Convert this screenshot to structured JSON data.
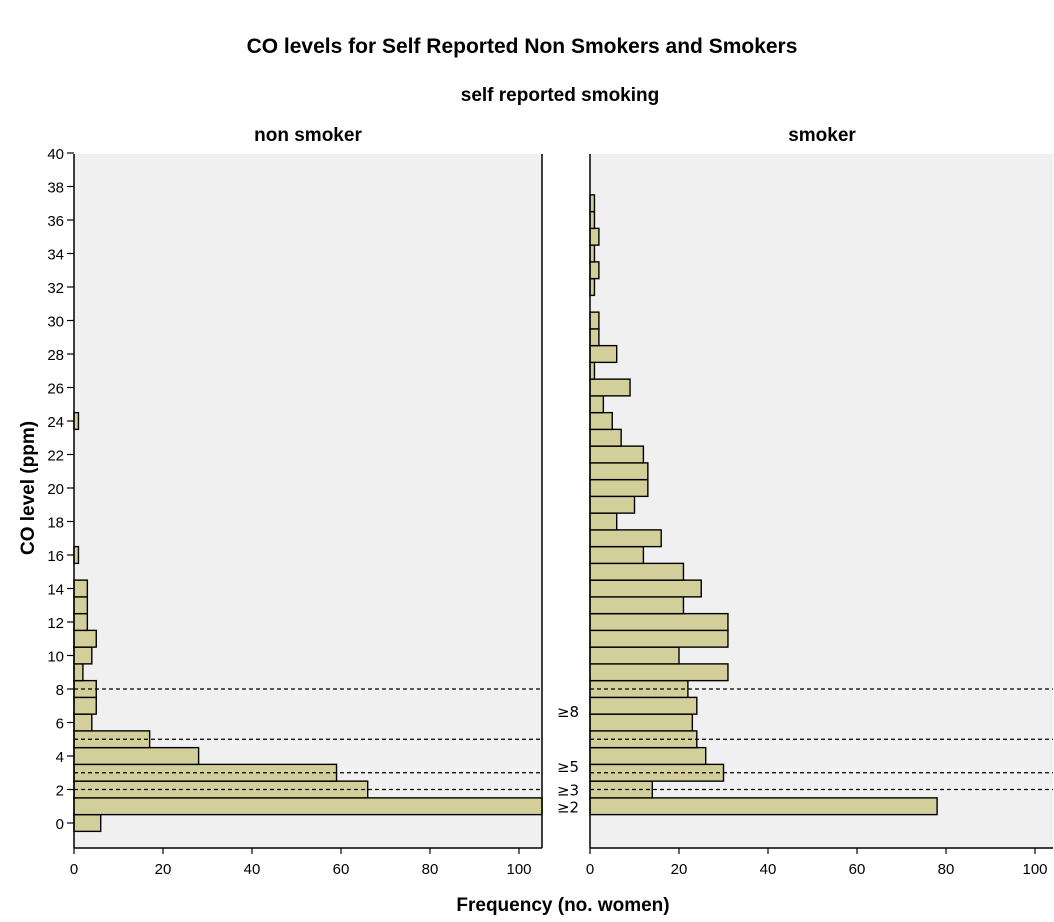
{
  "chart_data": {
    "type": "bar",
    "orientation": "horizontal",
    "title": "CO levels for Self Reported Non Smokers and Smokers",
    "panel_group_label": "self reported smoking",
    "xlabel": "Frequency (no. women)",
    "ylabel": "CO level (ppm)",
    "xlim": [
      0,
      105
    ],
    "ylim": [
      0,
      40
    ],
    "x_ticks": [
      0,
      20,
      40,
      60,
      80,
      100
    ],
    "y_ticks": [
      0,
      2,
      4,
      6,
      8,
      10,
      12,
      14,
      16,
      18,
      20,
      22,
      24,
      26,
      28,
      30,
      32,
      34,
      36,
      38,
      40
    ],
    "grid": false,
    "bar_color": "#d3cf9a",
    "panel_background": "#f0f0f0",
    "panels": [
      {
        "name": "non smoker",
        "values": [
          {
            "co": 0,
            "freq": 6
          },
          {
            "co": 1,
            "freq": 107
          },
          {
            "co": 2,
            "freq": 66
          },
          {
            "co": 3,
            "freq": 59
          },
          {
            "co": 4,
            "freq": 28
          },
          {
            "co": 5,
            "freq": 17
          },
          {
            "co": 6,
            "freq": 4
          },
          {
            "co": 7,
            "freq": 5
          },
          {
            "co": 8,
            "freq": 5
          },
          {
            "co": 9,
            "freq": 2
          },
          {
            "co": 10,
            "freq": 4
          },
          {
            "co": 11,
            "freq": 5
          },
          {
            "co": 12,
            "freq": 3
          },
          {
            "co": 13,
            "freq": 3
          },
          {
            "co": 14,
            "freq": 3
          },
          {
            "co": 16,
            "freq": 1
          },
          {
            "co": 24,
            "freq": 1
          }
        ]
      },
      {
        "name": "smoker",
        "values": [
          {
            "co": 1,
            "freq": 78
          },
          {
            "co": 2,
            "freq": 14
          },
          {
            "co": 3,
            "freq": 30
          },
          {
            "co": 4,
            "freq": 26
          },
          {
            "co": 5,
            "freq": 24
          },
          {
            "co": 6,
            "freq": 23
          },
          {
            "co": 7,
            "freq": 24
          },
          {
            "co": 8,
            "freq": 22
          },
          {
            "co": 9,
            "freq": 31
          },
          {
            "co": 10,
            "freq": 20
          },
          {
            "co": 11,
            "freq": 31
          },
          {
            "co": 12,
            "freq": 31
          },
          {
            "co": 13,
            "freq": 21
          },
          {
            "co": 14,
            "freq": 25
          },
          {
            "co": 15,
            "freq": 21
          },
          {
            "co": 16,
            "freq": 12
          },
          {
            "co": 17,
            "freq": 16
          },
          {
            "co": 18,
            "freq": 6
          },
          {
            "co": 19,
            "freq": 10
          },
          {
            "co": 20,
            "freq": 13
          },
          {
            "co": 21,
            "freq": 13
          },
          {
            "co": 22,
            "freq": 12
          },
          {
            "co": 23,
            "freq": 7
          },
          {
            "co": 24,
            "freq": 5
          },
          {
            "co": 25,
            "freq": 3
          },
          {
            "co": 26,
            "freq": 9
          },
          {
            "co": 27,
            "freq": 1
          },
          {
            "co": 28,
            "freq": 6
          },
          {
            "co": 29,
            "freq": 2
          },
          {
            "co": 30,
            "freq": 2
          },
          {
            "co": 32,
            "freq": 1
          },
          {
            "co": 33,
            "freq": 2
          },
          {
            "co": 34,
            "freq": 1
          },
          {
            "co": 35,
            "freq": 2
          },
          {
            "co": 36,
            "freq": 1
          },
          {
            "co": 37,
            "freq": 1
          }
        ]
      }
    ],
    "thresholds": [
      {
        "label": "≥2",
        "co": 1.5
      },
      {
        "label": "≥3",
        "co": 2.5
      },
      {
        "label": "≥5",
        "co": 4.5
      },
      {
        "label": "≥8",
        "co": 7.5
      }
    ]
  }
}
